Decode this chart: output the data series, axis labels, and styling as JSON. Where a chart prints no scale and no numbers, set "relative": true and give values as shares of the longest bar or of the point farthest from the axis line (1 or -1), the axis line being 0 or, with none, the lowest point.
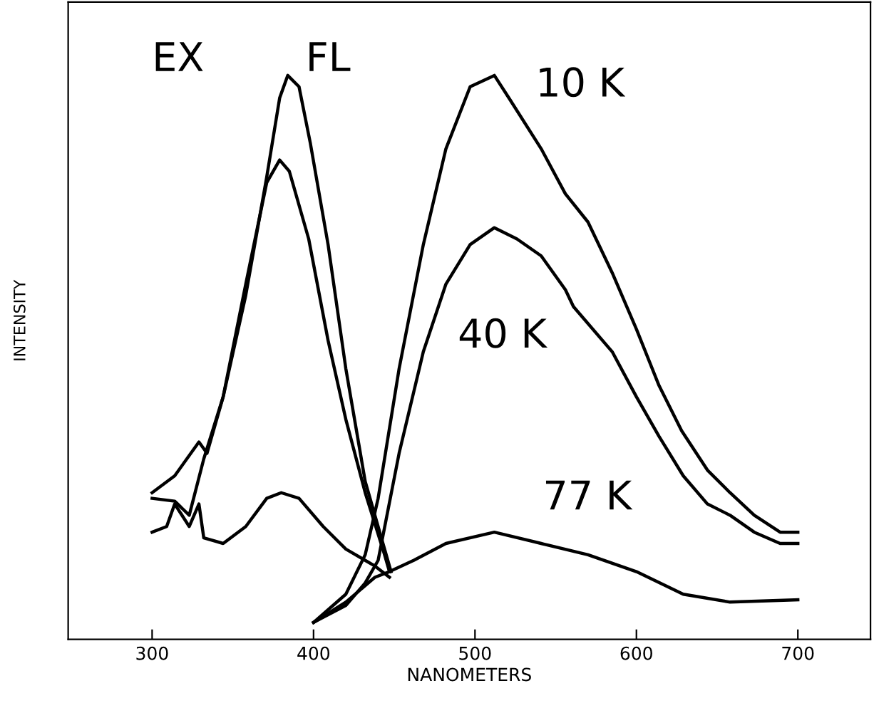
{
  "chart_data": {
    "type": "line",
    "relative": true,
    "xlabel": "NANOMETERS",
    "ylabel": "INTENSITY",
    "xlim": [
      248,
      745
    ],
    "xticks": [
      300,
      400,
      500,
      600,
      700
    ],
    "tick_labels": "x",
    "grid": false,
    "marker": "none",
    "line_style": "solid",
    "annotations": [
      "EX",
      "FL",
      "10 K",
      "40 K",
      "77 K"
    ],
    "series": [
      {
        "color": "#000000",
        "x": [
          300,
          314,
          329,
          334,
          344,
          358,
          371,
          379,
          384,
          391,
          398,
          409,
          420,
          432,
          444,
          448
        ],
        "values": [
          0.26,
          0.29,
          0.35,
          0.33,
          0.43,
          0.61,
          0.82,
          0.96,
          1.0,
          0.98,
          0.88,
          0.7,
          0.48,
          0.28,
          0.16,
          0.12
        ]
      },
      {
        "color": "#000000",
        "x": [
          300,
          314,
          323,
          332,
          344,
          358,
          371,
          379,
          385,
          397,
          409,
          420,
          432,
          444,
          447
        ],
        "values": [
          0.25,
          0.245,
          0.22,
          0.32,
          0.43,
          0.63,
          0.81,
          0.85,
          0.83,
          0.71,
          0.53,
          0.39,
          0.26,
          0.15,
          0.12
        ]
      },
      {
        "color": "#000000",
        "x": [
          300,
          309,
          314,
          323,
          329,
          332,
          344,
          358,
          371,
          380,
          391,
          406,
          420,
          432,
          438,
          447
        ],
        "values": [
          0.19,
          0.2,
          0.24,
          0.2,
          0.24,
          0.18,
          0.17,
          0.2,
          0.25,
          0.26,
          0.25,
          0.2,
          0.16,
          0.14,
          0.13,
          0.11
        ]
      },
      {
        "color": "#000000",
        "x": [
          400,
          420,
          432,
          440,
          453,
          468,
          482,
          497,
          512,
          521,
          541,
          556,
          570,
          585,
          600,
          614,
          628,
          644,
          658,
          673,
          689,
          700
        ],
        "values": [
          0.03,
          0.08,
          0.15,
          0.25,
          0.48,
          0.7,
          0.87,
          0.98,
          1.0,
          0.96,
          0.87,
          0.79,
          0.74,
          0.65,
          0.55,
          0.45,
          0.37,
          0.3,
          0.26,
          0.22,
          0.19,
          0.19
        ]
      },
      {
        "color": "#000000",
        "x": [
          400,
          420,
          432,
          440,
          453,
          468,
          482,
          497,
          512,
          526,
          541,
          556,
          561,
          585,
          600,
          614,
          629,
          644,
          658,
          673,
          689,
          700
        ],
        "values": [
          0.03,
          0.06,
          0.1,
          0.14,
          0.33,
          0.51,
          0.63,
          0.7,
          0.73,
          0.71,
          0.68,
          0.62,
          0.59,
          0.51,
          0.43,
          0.36,
          0.29,
          0.24,
          0.22,
          0.19,
          0.17,
          0.17
        ]
      },
      {
        "color": "#000000",
        "x": [
          400,
          420,
          438,
          447,
          462,
          482,
          512,
          541,
          570,
          600,
          629,
          658,
          700
        ],
        "values": [
          0.03,
          0.066,
          0.11,
          0.12,
          0.14,
          0.17,
          0.19,
          0.17,
          0.15,
          0.12,
          0.08,
          0.066,
          0.07
        ]
      }
    ]
  }
}
